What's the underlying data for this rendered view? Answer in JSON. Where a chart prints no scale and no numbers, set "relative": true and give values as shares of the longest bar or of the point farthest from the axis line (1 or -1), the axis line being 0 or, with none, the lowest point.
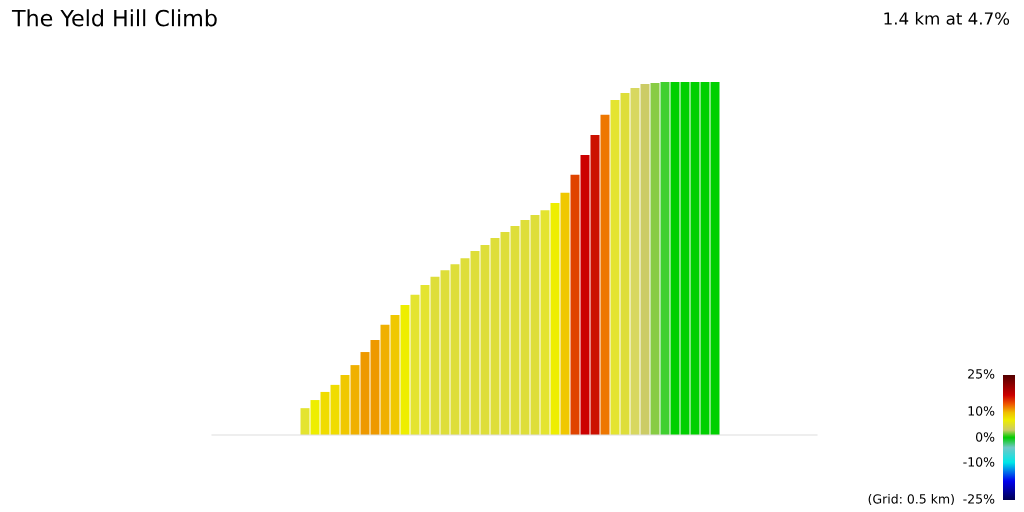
{
  "chart_data": [
    {
      "type": "bar",
      "title": "The Yeld Hill Climb",
      "relative": true,
      "categories": [
        null,
        null,
        null,
        null,
        null,
        null,
        null,
        null,
        null,
        null,
        null,
        null,
        null,
        null,
        null,
        null,
        null,
        null,
        null,
        null,
        null,
        null,
        null,
        null,
        null,
        null,
        null,
        null,
        null,
        null,
        null,
        null,
        null,
        null,
        null,
        null,
        null,
        null,
        null,
        null,
        null,
        null
      ],
      "values": [
        0.076,
        0.099,
        0.122,
        0.142,
        0.17,
        0.198,
        0.235,
        0.269,
        0.312,
        0.34,
        0.368,
        0.397,
        0.425,
        0.448,
        0.467,
        0.484,
        0.501,
        0.521,
        0.538,
        0.558,
        0.575,
        0.592,
        0.609,
        0.623,
        0.637,
        0.657,
        0.686,
        0.737,
        0.793,
        0.85,
        0.907,
        0.949,
        0.969,
        0.983,
        0.994,
        0.997,
        1,
        1,
        1,
        1,
        1,
        1
      ],
      "colors": [
        "#e4e430",
        "#eeee00",
        "#f0dc00",
        "#f0dc00",
        "#f0c800",
        "#f0b000",
        "#ee9900",
        "#ee9900",
        "#f0b000",
        "#f0c800",
        "#eeee00",
        "#e4e430",
        "#e4e430",
        "#dede3a",
        "#dede3a",
        "#dede3a",
        "#dede3a",
        "#dede3a",
        "#dede3a",
        "#dede3a",
        "#dede3a",
        "#dede3a",
        "#dede3a",
        "#dede3a",
        "#e4e430",
        "#eeee00",
        "#f0c800",
        "#e04400",
        "#cc0000",
        "#cc1100",
        "#ee7700",
        "#e4e430",
        "#dede3a",
        "#d8d860",
        "#cccc66",
        "#88cc44",
        "#40d030",
        "#00d000",
        "#00d000",
        "#00d000",
        "#00d000",
        "#00d000"
      ]
    },
    {
      "type": "other",
      "annotations": [
        "1.4 km at 4.7%",
        "25%",
        "10%",
        "0%",
        "-10%",
        "-25%",
        "(Grid: 0.5 km)"
      ]
    }
  ]
}
